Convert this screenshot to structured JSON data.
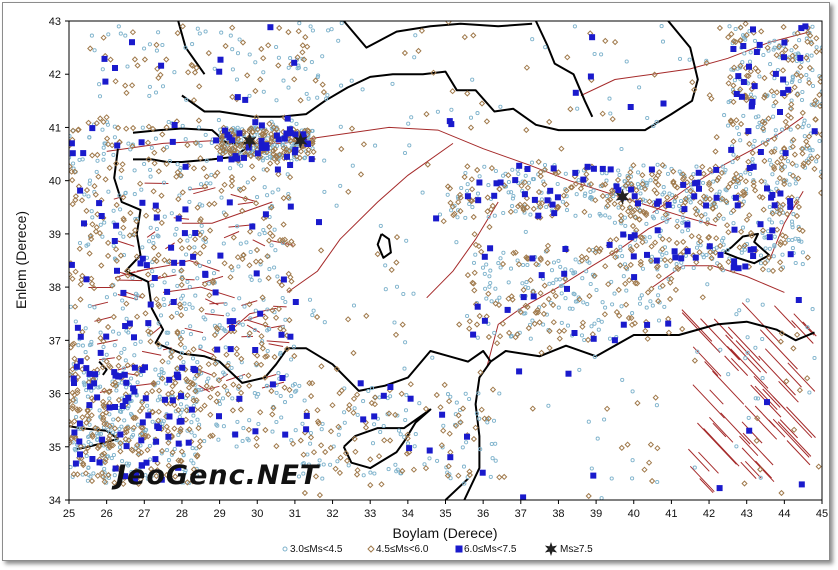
{
  "watermark": "JeoGenc.NET",
  "axes": {
    "xlabel": "Boylam (Derece)",
    "ylabel": "Enlem (Derece)",
    "xlim": [
      25,
      45
    ],
    "ylim": [
      34,
      43
    ],
    "x_ticks": [
      "25",
      "26",
      "27",
      "28",
      "29",
      "30",
      "31",
      "32",
      "33",
      "34",
      "35",
      "36",
      "37",
      "38",
      "39",
      "40",
      "41",
      "42",
      "43",
      "44",
      "45"
    ],
    "y_ticks": [
      "34",
      "35",
      "36",
      "37",
      "38",
      "39",
      "40",
      "41",
      "42",
      "43"
    ]
  },
  "legend": [
    {
      "symbol": "small-circle",
      "label": "3.0≤Ms<4.5",
      "color": "#7fb3cc"
    },
    {
      "symbol": "diamond",
      "label": "4.5≤Ms<6.0",
      "color": "#a07a4c"
    },
    {
      "symbol": "square",
      "label": "6.0≤Ms<7.5",
      "color": "#1a1acc"
    },
    {
      "symbol": "star",
      "label": "Ms≥7.5",
      "color": "#222222"
    }
  ],
  "colors": {
    "coastline": "#000000",
    "faults": "#a52a2a",
    "small_events": "#7fb3cc",
    "medium_events": "#a07a4c",
    "large_events": "#1a1acc",
    "major_events": "#222222"
  },
  "major_events": [
    {
      "lon": 29.8,
      "lat": 40.75
    },
    {
      "lon": 31.15,
      "lat": 40.75
    },
    {
      "lon": 39.7,
      "lat": 39.7
    }
  ]
}
